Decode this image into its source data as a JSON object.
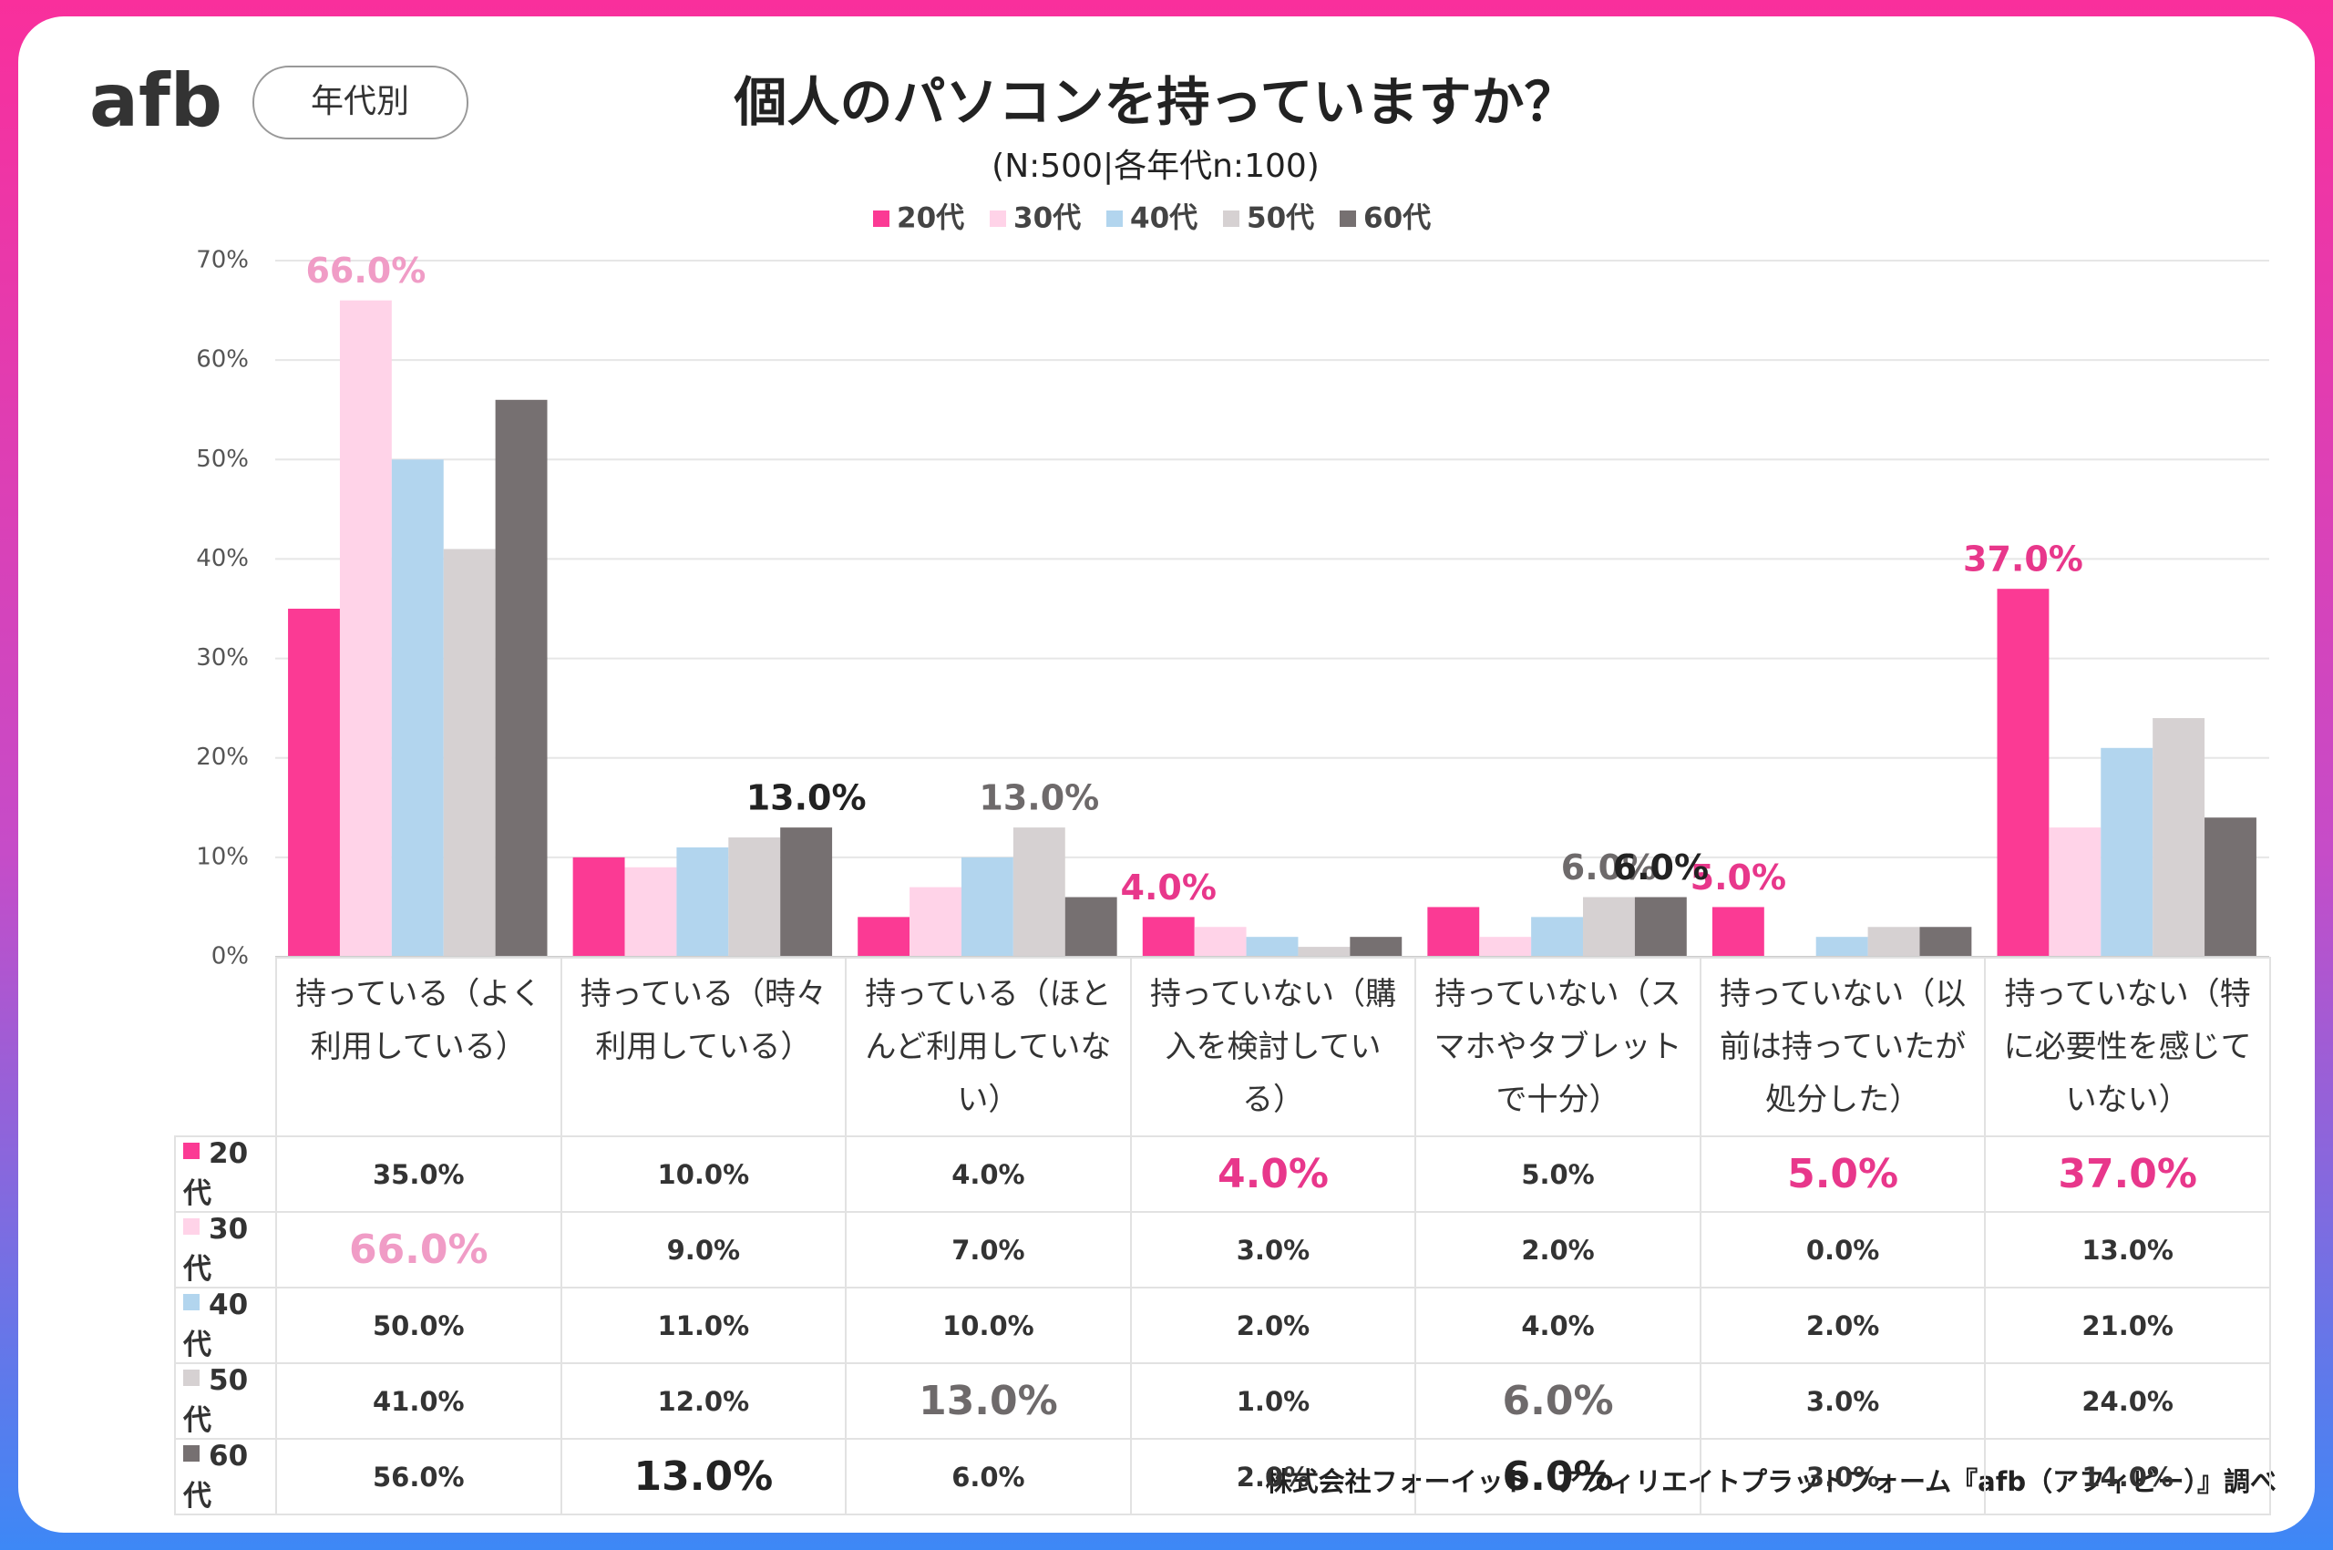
{
  "logo": "afb",
  "tag": "年代別",
  "footer": "株式会社フォーイット　アフィリエイトプラットフォーム『afb（アフィビー）』調べ",
  "chart_data": {
    "type": "bar",
    "title": "個人のパソコンを持っていますか？",
    "subtitle": "(N:500|各年代n:100)",
    "categories": [
      "持っている（よく利用している）",
      "持っている（時々利用している）",
      "持っている（ほとんど利用していない）",
      "持っていない（購入を検討している）",
      "持っていない（スマホやタブレットで十分）",
      "持っていない（以前は持っていたが処分した）",
      "持っていない（特に必要性を感じていない）"
    ],
    "series": [
      {
        "name": "20代",
        "color": "#fb3a94",
        "label_color": "#e8378b",
        "values": [
          35,
          10,
          4,
          4,
          5,
          5,
          37
        ],
        "value_labels": [
          "35.0%",
          "10.0%",
          "4.0%",
          "4.0%",
          "5.0%",
          "5.0%",
          "37.0%"
        ],
        "labeled": [
          3,
          5,
          6
        ]
      },
      {
        "name": "30代",
        "color": "#ffd3e8",
        "label_color": "#f09cc6",
        "values": [
          66,
          9,
          7,
          3,
          2,
          0,
          13
        ],
        "value_labels": [
          "66.0%",
          "9.0%",
          "7.0%",
          "3.0%",
          "2.0%",
          "0.0%",
          "13.0%"
        ],
        "labeled": [
          0
        ]
      },
      {
        "name": "40代",
        "color": "#b2d5ee",
        "label_color": "#333333",
        "values": [
          50,
          11,
          10,
          2,
          4,
          2,
          21
        ],
        "value_labels": [
          "50.0%",
          "11.0%",
          "10.0%",
          "2.0%",
          "4.0%",
          "2.0%",
          "21.0%"
        ],
        "labeled": []
      },
      {
        "name": "50代",
        "color": "#d6d1d2",
        "label_color": "#6e6a6b",
        "values": [
          41,
          12,
          13,
          1,
          6,
          3,
          24
        ],
        "value_labels": [
          "41.0%",
          "12.0%",
          "13.0%",
          "1.0%",
          "6.0%",
          "3.0%",
          "24.0%"
        ],
        "labeled": [
          2,
          4
        ]
      },
      {
        "name": "60代",
        "color": "#767071",
        "label_color": "#222222",
        "values": [
          56,
          13,
          6,
          2,
          6,
          3,
          14
        ],
        "value_labels": [
          "56.0%",
          "13.0%",
          "6.0%",
          "2.0%",
          "6.0%",
          "3.0%",
          "14.0%"
        ],
        "labeled": [
          1,
          4
        ]
      }
    ],
    "ylim": [
      0,
      70
    ],
    "yticks": [
      {
        "value": 0,
        "label": "0%"
      },
      {
        "value": 10,
        "label": "10%"
      },
      {
        "value": 20,
        "label": "20%"
      },
      {
        "value": 30,
        "label": "30%"
      },
      {
        "value": 40,
        "label": "40%"
      },
      {
        "value": 50,
        "label": "50%"
      },
      {
        "value": 60,
        "label": "60%"
      },
      {
        "value": 70,
        "label": "70%"
      }
    ],
    "grid": true
  }
}
